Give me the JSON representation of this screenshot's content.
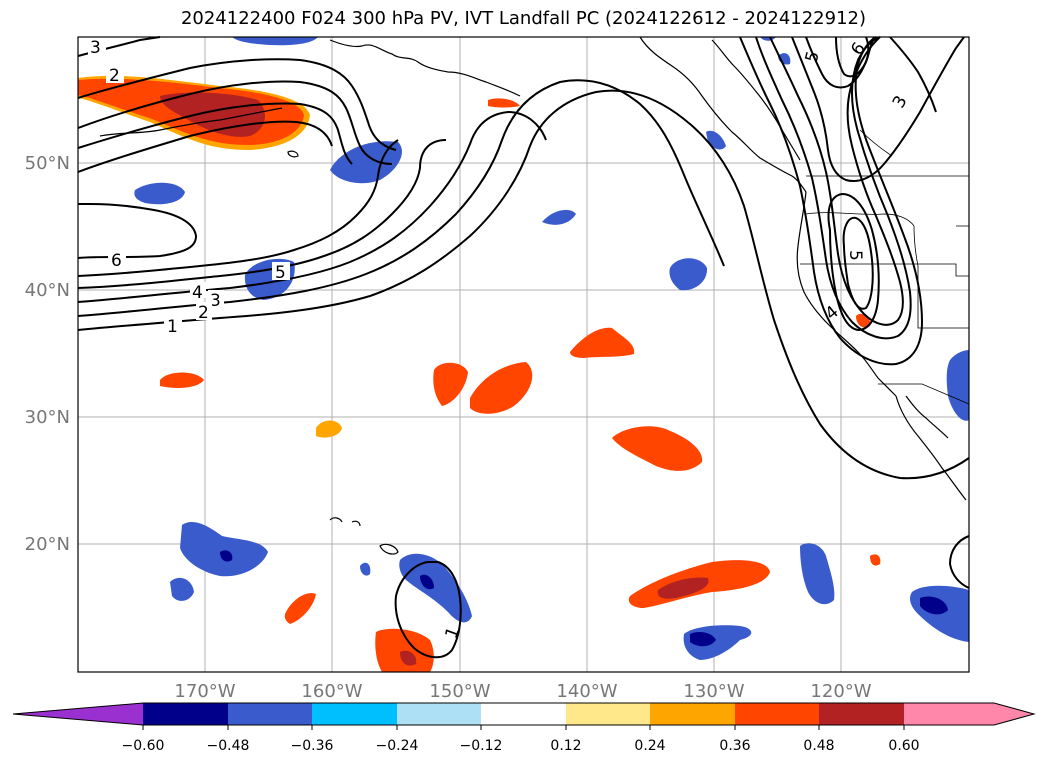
{
  "title": "2024122400 F024 300 hPa PV, IVT Landfall PC (2024122612 - 2024122912)",
  "map": {
    "projection": "PlateCarree",
    "lon_range": [
      -180,
      -110
    ],
    "lat_range": [
      10,
      60
    ],
    "gridlines": true
  },
  "lat_labels": [
    "50°N",
    "40°N",
    "30°N",
    "20°N"
  ],
  "lon_labels": [
    "170°W",
    "160°W",
    "150°W",
    "140°W",
    "130°W",
    "120°W"
  ],
  "colorbar": {
    "ticks": [
      "−0.60",
      "−0.48",
      "−0.36",
      "−0.24",
      "−0.12",
      "0.12",
      "0.24",
      "0.36",
      "0.48",
      "0.60"
    ],
    "colors": [
      "#9b30d0",
      "#00008b",
      "#3a5bcc",
      "#00bfff",
      "#aee0f5",
      "#ffffff",
      "#ffe88a",
      "#ffa500",
      "#ff4500",
      "#b22222",
      "#ff88aa"
    ],
    "extend": "both"
  },
  "contour_labels": [
    "3",
    "2",
    "6",
    "4",
    "3",
    "2",
    "1",
    "5",
    "5",
    "6",
    "3",
    "5",
    "4",
    "1"
  ],
  "colors": {
    "axes": "#000000",
    "grid": "#b0b0b0",
    "coast": "#000000"
  }
}
